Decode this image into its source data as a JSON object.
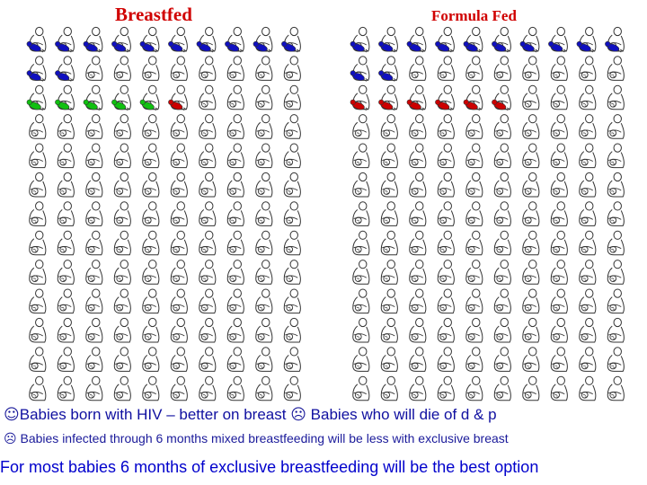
{
  "titles": {
    "breastfed": "Breastfed",
    "formula": "Formula Fed"
  },
  "grid": {
    "columns": 10,
    "rows": 13,
    "total_babies": 130,
    "icon": "mother-and-baby-icon"
  },
  "groups": {
    "breastfed": {
      "row_markers": [
        [
          "blue",
          "blue",
          "blue",
          "blue",
          "blue",
          "blue",
          "blue",
          "blue",
          "blue",
          "blue"
        ],
        [
          "blue",
          "blue",
          "none",
          "none",
          "none",
          "none",
          "none",
          "none",
          "none",
          "none"
        ],
        [
          "green",
          "green",
          "green",
          "green",
          "green",
          "red",
          "none",
          "none",
          "none",
          "none"
        ]
      ]
    },
    "formula": {
      "row_markers": [
        [
          "blue",
          "blue",
          "blue",
          "blue",
          "blue",
          "blue",
          "blue",
          "blue",
          "blue",
          "blue"
        ],
        [
          "blue",
          "blue",
          "none",
          "none",
          "none",
          "none",
          "none",
          "none",
          "none",
          "none"
        ],
        [
          "red",
          "red",
          "red",
          "red",
          "red",
          "red",
          "none",
          "none",
          "none",
          "none"
        ]
      ]
    }
  },
  "colors": {
    "title": "#d00000",
    "blue_marker": "#1010c0",
    "green_marker": "#10c010",
    "red_marker": "#cc0000",
    "outline": "#333333",
    "text": "#1a1a9a"
  },
  "legend": {
    "line1_part1": "Babies born with HIV – better on breast",
    "line1_part2": "Babies who will die of d & p",
    "line2": "Babies infected through 6 months mixed breastfeeding will be less with exclusive breast",
    "line3": "For most babies 6 months of exclusive breastfeeding will be the best option"
  }
}
